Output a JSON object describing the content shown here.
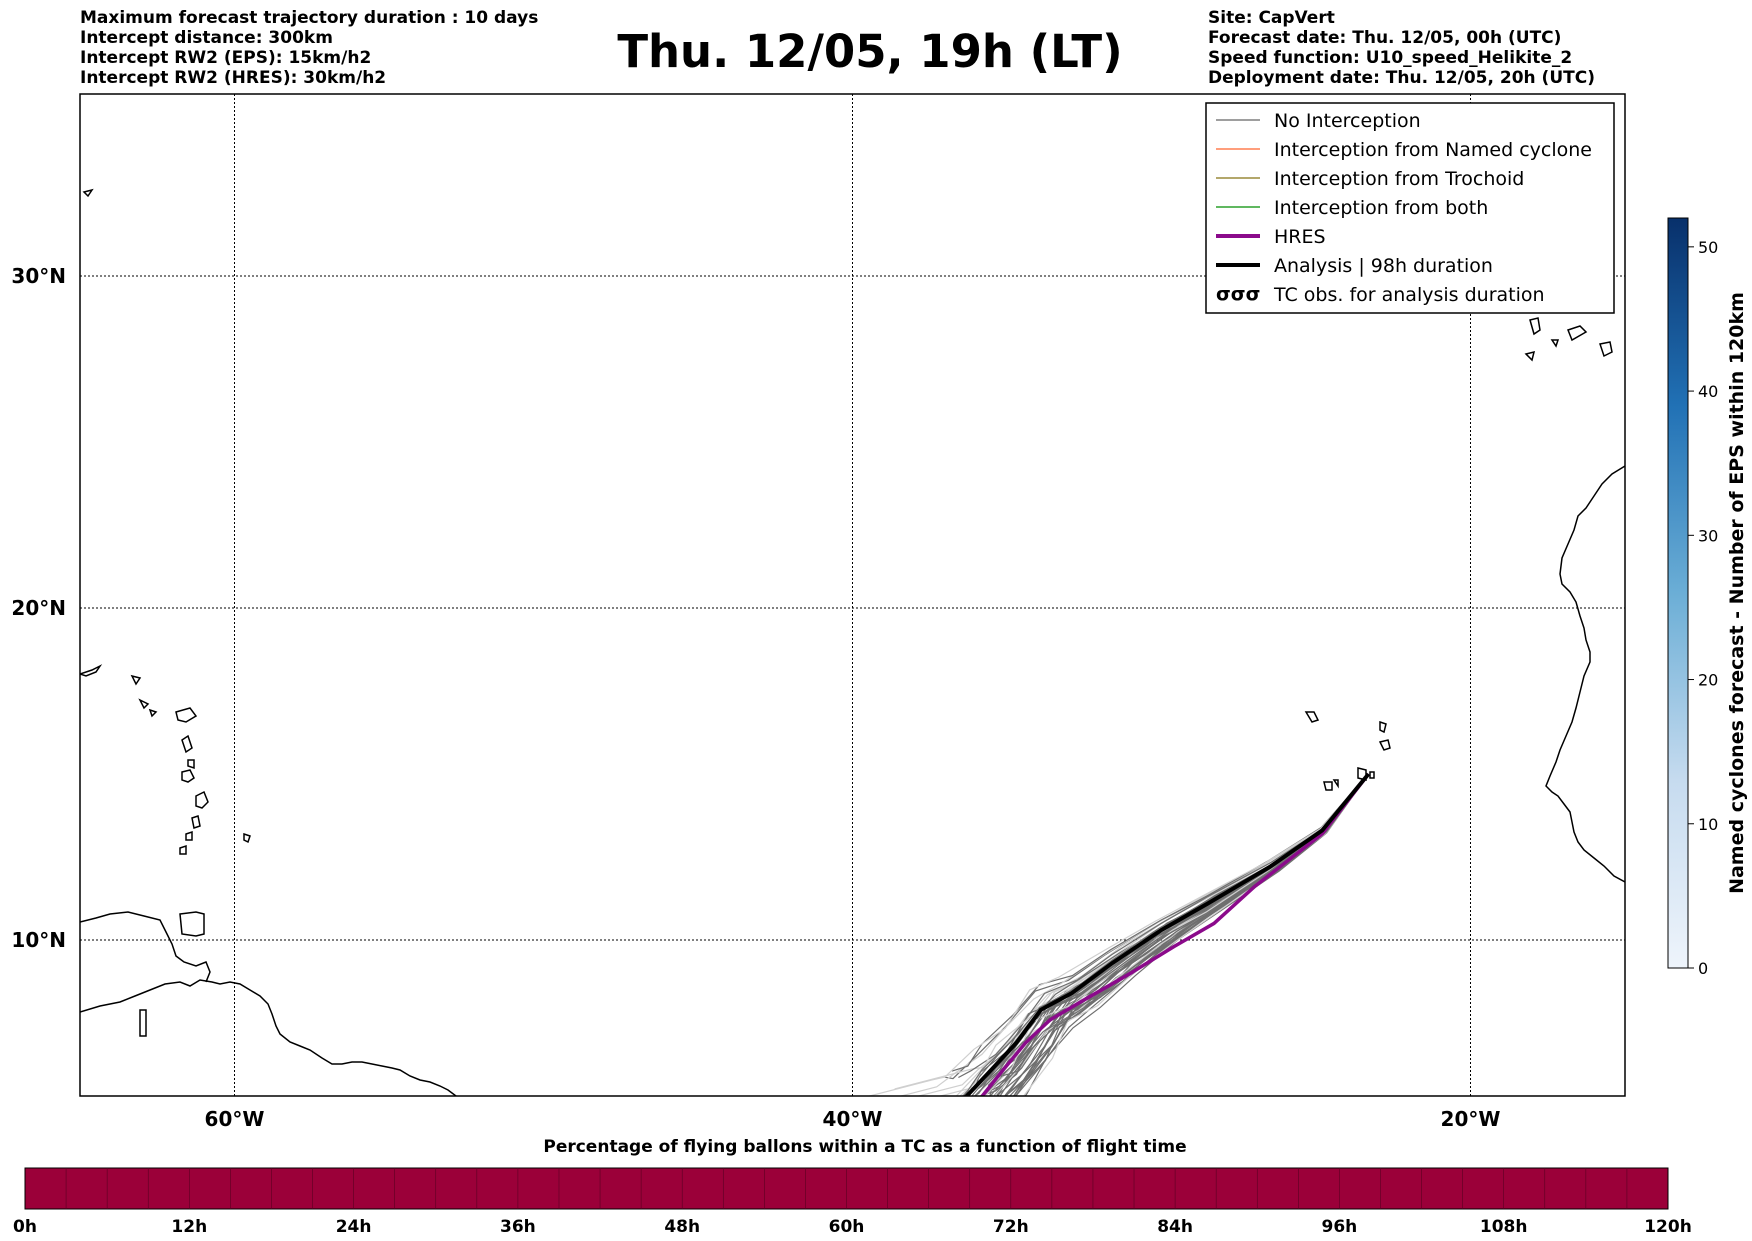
{
  "header": {
    "left_lines": [
      "Maximum forecast trajectory duration : 10 days",
      "Intercept distance: 300km",
      "Intercept RW2 (EPS):  15km/h2",
      "Intercept RW2 (HRES): 30km/h2"
    ],
    "title": "Thu. 12/05, 19h (LT)",
    "right_lines": [
      "Site: CapVert",
      "Forecast date: Thu. 12/05, 00h (UTC)",
      "Speed function: U10_speed_Helikite_2",
      "Deployment date: Thu. 12/05, 20h (UTC)"
    ]
  },
  "map": {
    "lon_range": [
      -65,
      -15
    ],
    "lat_range": [
      5,
      35
    ],
    "lon_ticks": [
      {
        "value": -60,
        "label": "60°W"
      },
      {
        "value": -40,
        "label": "40°W"
      },
      {
        "value": -20,
        "label": "20°W"
      }
    ],
    "lat_ticks": [
      {
        "value": 10,
        "label": "10°N"
      },
      {
        "value": 20,
        "label": "20°N"
      },
      {
        "value": 30,
        "label": "30°N"
      }
    ],
    "grid": true,
    "launch_site": {
      "name": "CapVert",
      "lon": -23.3,
      "lat": 15.0
    }
  },
  "legend": {
    "items": [
      {
        "label": "No Interception",
        "color": "#7f7f7f",
        "style": "thin"
      },
      {
        "label": "Interception from Named cyclone",
        "color": "#ff7f50",
        "style": "thin"
      },
      {
        "label": "Interception from Trochoid",
        "color": "#9a8a3a",
        "style": "thin"
      },
      {
        "label": "Interception from both",
        "color": "#2ca02c",
        "style": "thin"
      },
      {
        "label": "HRES",
        "color": "#8b0a8b",
        "style": "thick"
      },
      {
        "label": "Analysis | 98h duration",
        "color": "#000000",
        "style": "thick"
      },
      {
        "label": "TC obs. for analysis duration",
        "color": "#000000",
        "style": "symbol",
        "symbol": "σσσ"
      }
    ]
  },
  "colorbar": {
    "label": "Named cyclones forecast - Number of EPS within 120km",
    "min": 0,
    "max": 52,
    "ticks": [
      "0",
      "10",
      "20",
      "30",
      "40",
      "50"
    ],
    "color_low": "#e8f0fa",
    "color_high": "#08306b"
  },
  "timeline": {
    "title": "Percentage of flying ballons within a TC as a function of flight time",
    "color": "#9b0039",
    "ticks": [
      "0h",
      "12h",
      "24h",
      "36h",
      "48h",
      "60h",
      "72h",
      "84h",
      "96h",
      "108h",
      "120h"
    ]
  },
  "trajectories": {
    "analysis": [
      [
        -23.3,
        15.0
      ],
      [
        -24.8,
        13.3
      ],
      [
        -26.5,
        12.2
      ],
      [
        -28.5,
        11.1
      ],
      [
        -30.0,
        10.3
      ],
      [
        -31.6,
        9.3
      ],
      [
        -32.9,
        8.4
      ],
      [
        -33.9,
        7.9
      ],
      [
        -34.7,
        6.9
      ],
      [
        -35.6,
        6.0
      ],
      [
        -36.3,
        5.3
      ],
      [
        -36.8,
        5.0
      ]
    ],
    "hres": [
      [
        -23.3,
        15.0
      ],
      [
        -24.8,
        13.2
      ],
      [
        -27.0,
        11.6
      ],
      [
        -28.3,
        10.5
      ],
      [
        -29.6,
        9.8
      ],
      [
        -31.0,
        9.0
      ],
      [
        -32.5,
        8.2
      ],
      [
        -33.6,
        7.6
      ],
      [
        -34.4,
        6.9
      ],
      [
        -35.2,
        6.0
      ],
      [
        -35.8,
        5.3
      ],
      [
        -36.1,
        5.0
      ]
    ]
  }
}
